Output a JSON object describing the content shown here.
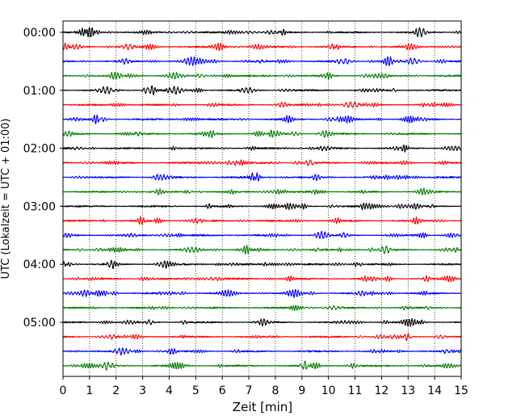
{
  "chart_data": {
    "type": "line",
    "title": "",
    "xlabel": "Zeit  [min]",
    "ylabel": "UTC (Lokalzeit = UTC + 01:00)",
    "xlim": [
      0,
      15
    ],
    "x_ticks": [
      "0",
      "1",
      "2",
      "3",
      "4",
      "5",
      "6",
      "7",
      "8",
      "9",
      "10",
      "11",
      "12",
      "13",
      "14",
      "15"
    ],
    "y_ticks": [
      "00:00",
      "01:00",
      "02:00",
      "03:00",
      "04:00",
      "05:00"
    ],
    "grid": {
      "vertical": true,
      "style": "dotted"
    },
    "trace_interval_min": 15,
    "trace_colors": [
      "#000000",
      "#ff0000",
      "#0000ff",
      "#007f00"
    ],
    "series": [
      {
        "start": "00:00",
        "color": "#000000"
      },
      {
        "start": "00:15",
        "color": "#ff0000"
      },
      {
        "start": "00:30",
        "color": "#0000ff"
      },
      {
        "start": "00:45",
        "color": "#007f00"
      },
      {
        "start": "01:00",
        "color": "#000000"
      },
      {
        "start": "01:15",
        "color": "#ff0000"
      },
      {
        "start": "01:30",
        "color": "#0000ff"
      },
      {
        "start": "01:45",
        "color": "#007f00"
      },
      {
        "start": "02:00",
        "color": "#000000"
      },
      {
        "start": "02:15",
        "color": "#ff0000"
      },
      {
        "start": "02:30",
        "color": "#0000ff"
      },
      {
        "start": "02:45",
        "color": "#007f00"
      },
      {
        "start": "03:00",
        "color": "#000000"
      },
      {
        "start": "03:15",
        "color": "#ff0000"
      },
      {
        "start": "03:30",
        "color": "#0000ff"
      },
      {
        "start": "03:45",
        "color": "#007f00"
      },
      {
        "start": "04:00",
        "color": "#000000"
      },
      {
        "start": "04:15",
        "color": "#ff0000"
      },
      {
        "start": "04:30",
        "color": "#0000ff"
      },
      {
        "start": "04:45",
        "color": "#007f00"
      },
      {
        "start": "05:00",
        "color": "#000000"
      },
      {
        "start": "05:15",
        "color": "#ff0000"
      },
      {
        "start": "05:30",
        "color": "#0000ff"
      },
      {
        "start": "05:45",
        "color": "#007f00"
      }
    ]
  }
}
